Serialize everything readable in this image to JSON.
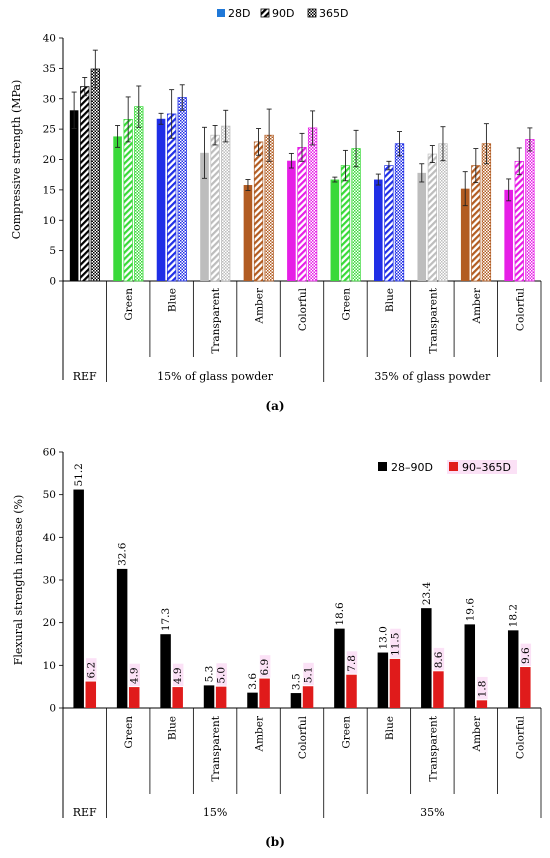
{
  "colors": {
    "REF": "#000000",
    "Green": "#39d939",
    "Blue": "#1f2ee6",
    "Transparent": "#bdbdbd",
    "Amber": "#b25c22",
    "Colorful": "#e61ee6",
    "bar_28_90": "#000000",
    "bar_90_365": "#e01b1b",
    "label_halo": "#f7c9ee"
  },
  "chart_data": [
    {
      "type": "bar",
      "panel_label": "(a)",
      "ylabel": "Compressive strength (MPa)",
      "ylim": [
        0,
        40
      ],
      "yticks": [
        0,
        5,
        10,
        15,
        20,
        25,
        30,
        35,
        40
      ],
      "legend": [
        "28D",
        "90D",
        "365D"
      ],
      "legend_position": "top-center",
      "categories": [
        "REF",
        "Green",
        "Blue",
        "Transparent",
        "Amber",
        "Colorful",
        "Green",
        "Blue",
        "Transparent",
        "Amber",
        "Colorful"
      ],
      "groups": [
        "REF",
        "15% of glass powder",
        "35% of glass powder"
      ],
      "series": [
        {
          "name": "28D",
          "values": [
            28.1,
            23.8,
            26.7,
            21.1,
            15.8,
            19.8,
            16.7,
            16.7,
            17.8,
            15.2,
            15.0
          ],
          "errors": [
            3.0,
            1.8,
            0.9,
            4.2,
            0.9,
            1.2,
            0.4,
            0.9,
            1.5,
            2.8,
            1.8
          ]
        },
        {
          "name": "90D",
          "values": [
            32.0,
            26.6,
            27.5,
            24.0,
            22.9,
            22.0,
            19.0,
            19.0,
            20.9,
            19.0,
            19.7
          ],
          "errors": [
            1.5,
            3.7,
            4.0,
            1.6,
            2.2,
            2.3,
            2.5,
            0.7,
            1.4,
            2.8,
            2.2
          ]
        },
        {
          "name": "365D",
          "values": [
            34.9,
            28.7,
            30.2,
            25.5,
            24.0,
            25.2,
            21.8,
            22.6,
            22.6,
            22.6,
            23.3
          ],
          "errors": [
            3.1,
            3.4,
            2.1,
            2.6,
            4.3,
            2.8,
            3.0,
            2.0,
            2.8,
            3.3,
            1.9
          ]
        }
      ]
    },
    {
      "type": "bar",
      "panel_label": "(b)",
      "ylabel": "Flexural strength increase (%)",
      "ylim": [
        0,
        60
      ],
      "yticks": [
        0,
        10,
        20,
        30,
        40,
        50,
        60
      ],
      "legend": [
        "28–90D",
        "90–365D"
      ],
      "legend_position": "top-right",
      "categories": [
        "REF",
        "Green",
        "Blue",
        "Transparent",
        "Amber",
        "Colorful",
        "Green",
        "Blue",
        "Transparent",
        "Amber",
        "Colorful"
      ],
      "groups": [
        "REF",
        "15%",
        "35%"
      ],
      "series": [
        {
          "name": "28–90D",
          "values": [
            51.2,
            32.6,
            17.3,
            5.3,
            3.6,
            3.5,
            18.6,
            13.0,
            23.4,
            19.6,
            18.2
          ],
          "labels": [
            "51.2",
            "32.6",
            "17.3",
            "5.3",
            "3.6",
            "3.5",
            "18.6",
            "13.0",
            "23.4",
            "19.6",
            "18.2"
          ]
        },
        {
          "name": "90–365D",
          "values": [
            6.2,
            4.9,
            4.9,
            5.0,
            6.9,
            5.1,
            7.8,
            11.5,
            8.6,
            1.8,
            9.6
          ],
          "labels": [
            "6.2",
            "4.9",
            "4.9",
            "5.0",
            "6.9",
            "5.1",
            "7.8",
            "11.5",
            "8.6",
            "1.8",
            "9.6"
          ]
        }
      ]
    }
  ]
}
